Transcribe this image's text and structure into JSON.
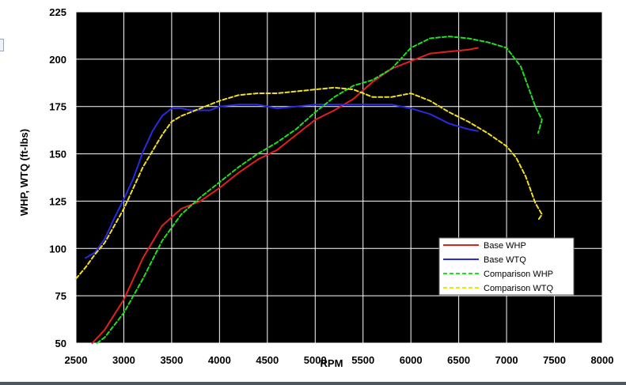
{
  "chart_data": {
    "type": "line",
    "title": "",
    "xlabel": "RPM",
    "ylabel": "WHP, WTQ (ft-lbs)",
    "xlim": [
      2500,
      8000
    ],
    "ylim": [
      50,
      225
    ],
    "x_ticks": [
      "2500",
      "3000",
      "3500",
      "4000",
      "4500",
      "5000",
      "5500",
      "6000",
      "6500",
      "7000",
      "7500",
      "8000"
    ],
    "y_ticks": [
      "50",
      "75",
      "100",
      "125",
      "150",
      "175",
      "200",
      "225"
    ],
    "grid": true,
    "background": "#000000",
    "legend_position": "lower-right",
    "series": [
      {
        "name": "Base WHP",
        "color": "#e02020",
        "style": "solid",
        "points": [
          [
            2670,
            50
          ],
          [
            2800,
            57
          ],
          [
            3000,
            73
          ],
          [
            3200,
            95
          ],
          [
            3400,
            112
          ],
          [
            3600,
            121
          ],
          [
            3800,
            125
          ],
          [
            4000,
            132
          ],
          [
            4200,
            140
          ],
          [
            4400,
            147
          ],
          [
            4600,
            152
          ],
          [
            4800,
            160
          ],
          [
            5000,
            168
          ],
          [
            5200,
            173
          ],
          [
            5400,
            179
          ],
          [
            5600,
            188
          ],
          [
            5800,
            195
          ],
          [
            6000,
            199
          ],
          [
            6200,
            203
          ],
          [
            6400,
            204
          ],
          [
            6600,
            205
          ],
          [
            6700,
            206
          ]
        ]
      },
      {
        "name": "Base WTQ",
        "color": "#2a2ae0",
        "style": "solid",
        "points": [
          [
            2600,
            95
          ],
          [
            2700,
            98
          ],
          [
            2800,
            105
          ],
          [
            2900,
            116
          ],
          [
            3000,
            126
          ],
          [
            3100,
            137
          ],
          [
            3200,
            151
          ],
          [
            3300,
            162
          ],
          [
            3400,
            170
          ],
          [
            3500,
            174
          ],
          [
            3600,
            174
          ],
          [
            3700,
            173
          ],
          [
            3800,
            173
          ],
          [
            3900,
            173
          ],
          [
            4000,
            175
          ],
          [
            4200,
            176
          ],
          [
            4400,
            176
          ],
          [
            4600,
            174
          ],
          [
            4800,
            175
          ],
          [
            5000,
            176
          ],
          [
            5200,
            176
          ],
          [
            5400,
            176
          ],
          [
            5600,
            176
          ],
          [
            5800,
            176
          ],
          [
            6000,
            174
          ],
          [
            6200,
            171
          ],
          [
            6400,
            166
          ],
          [
            6600,
            163
          ],
          [
            6700,
            162
          ]
        ]
      },
      {
        "name": "Comparison WHP",
        "color": "#22dd22",
        "style": "dashed",
        "points": [
          [
            2720,
            50
          ],
          [
            2800,
            53
          ],
          [
            3000,
            66
          ],
          [
            3200,
            84
          ],
          [
            3400,
            104
          ],
          [
            3600,
            118
          ],
          [
            3800,
            127
          ],
          [
            4000,
            135
          ],
          [
            4200,
            143
          ],
          [
            4400,
            150
          ],
          [
            4600,
            156
          ],
          [
            4800,
            163
          ],
          [
            5000,
            172
          ],
          [
            5200,
            180
          ],
          [
            5400,
            186
          ],
          [
            5600,
            189
          ],
          [
            5800,
            195
          ],
          [
            6000,
            206
          ],
          [
            6200,
            211
          ],
          [
            6400,
            212
          ],
          [
            6600,
            211
          ],
          [
            6800,
            209
          ],
          [
            7000,
            206
          ],
          [
            7150,
            196
          ],
          [
            7300,
            175
          ],
          [
            7370,
            168
          ],
          [
            7330,
            161
          ]
        ]
      },
      {
        "name": "Comparison WTQ",
        "color": "#f2e020",
        "style": "dashed",
        "points": [
          [
            2500,
            84
          ],
          [
            2600,
            90
          ],
          [
            2700,
            97
          ],
          [
            2800,
            103
          ],
          [
            2900,
            112
          ],
          [
            3000,
            121
          ],
          [
            3200,
            143
          ],
          [
            3400,
            160
          ],
          [
            3500,
            167
          ],
          [
            3600,
            170
          ],
          [
            3800,
            174
          ],
          [
            4000,
            178
          ],
          [
            4200,
            181
          ],
          [
            4400,
            182
          ],
          [
            4600,
            182
          ],
          [
            4800,
            183
          ],
          [
            5000,
            184
          ],
          [
            5200,
            185
          ],
          [
            5400,
            184
          ],
          [
            5600,
            180
          ],
          [
            5800,
            180
          ],
          [
            6000,
            182
          ],
          [
            6200,
            178
          ],
          [
            6400,
            172
          ],
          [
            6600,
            167
          ],
          [
            6800,
            161
          ],
          [
            7000,
            154
          ],
          [
            7100,
            148
          ],
          [
            7200,
            138
          ],
          [
            7300,
            124
          ],
          [
            7370,
            118
          ],
          [
            7330,
            115
          ]
        ]
      }
    ]
  }
}
